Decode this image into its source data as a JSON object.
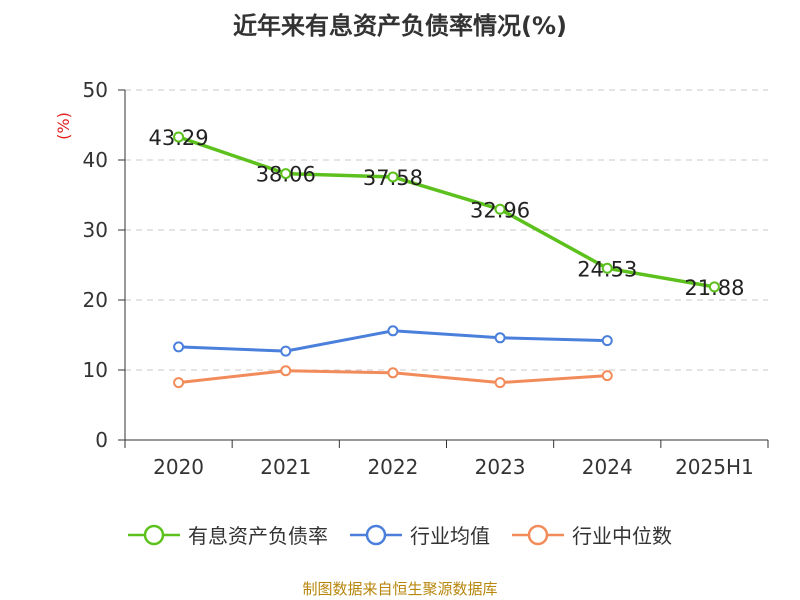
{
  "title": "近年来有息资产负债率情况(%)",
  "source_text": "制图数据来自恒生聚源数据库",
  "colors": {
    "debt_ratio": "#5cc11d",
    "industry_avg": "#4a7fdb",
    "industry_median": "#f28b5a",
    "unit_label": "#e02020",
    "axis": "#333333",
    "grid": "#c8c8c8",
    "text": "#333333"
  },
  "chart_data": {
    "type": "line",
    "title": "近年来有息资产负债率情况(%)",
    "ylabel": "(%)",
    "categories": [
      "2020",
      "2021",
      "2022",
      "2023",
      "2024",
      "2025H1"
    ],
    "ylim": [
      0,
      50
    ],
    "yticks": [
      0,
      10,
      20,
      30,
      40,
      50
    ],
    "grid": true,
    "legend_position": "bottom",
    "series": [
      {
        "key": "debt_ratio",
        "name": "有息资产负债率",
        "values": [
          43.29,
          38.06,
          37.58,
          32.96,
          24.53,
          21.88
        ],
        "labels": [
          "43.29",
          "38.06",
          "37.58",
          "32.96",
          "24.53",
          "21.88"
        ]
      },
      {
        "key": "industry_avg",
        "name": "行业均值",
        "values": [
          13.3,
          12.7,
          15.6,
          14.6,
          14.2,
          null
        ]
      },
      {
        "key": "industry_median",
        "name": "行业中位数",
        "values": [
          8.2,
          9.9,
          9.6,
          8.2,
          9.2,
          null
        ]
      }
    ]
  }
}
